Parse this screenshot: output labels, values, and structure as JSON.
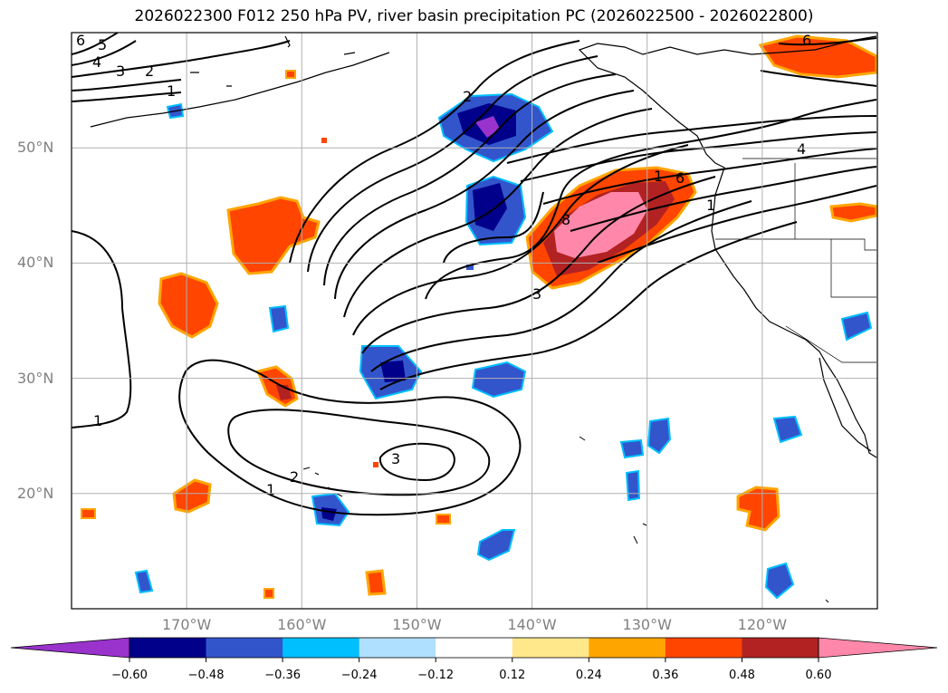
{
  "title": "2026022300 F012 250 hPa PV, river basin precipitation PC (2026022500 - 2026022800)",
  "map": {
    "lon_range": [
      -180,
      -110
    ],
    "lat_range": [
      10,
      60
    ],
    "lat_ticks": [
      {
        "value": 50,
        "label": "50°N"
      },
      {
        "value": 40,
        "label": "40°N"
      },
      {
        "value": 30,
        "label": "30°N"
      },
      {
        "value": 20,
        "label": "20°N"
      }
    ],
    "lon_ticks": [
      {
        "value": -170,
        "label": "170°W"
      },
      {
        "value": -160,
        "label": "160°W"
      },
      {
        "value": -150,
        "label": "150°W"
      },
      {
        "value": -140,
        "label": "140°W"
      },
      {
        "value": -130,
        "label": "130°W"
      },
      {
        "value": -120,
        "label": "120°W"
      }
    ],
    "grid": true,
    "contour_labels": [
      "6",
      "5",
      "4",
      "3",
      "2",
      "1",
      "2",
      "8",
      "3",
      "1",
      "6",
      "1",
      "4",
      "6",
      "1",
      "2",
      "3",
      "1"
    ]
  },
  "colorbar": {
    "ticks": [
      "−0.60",
      "−0.48",
      "−0.36",
      "−0.24",
      "−0.12",
      "0.12",
      "0.24",
      "0.36",
      "0.48",
      "0.60"
    ],
    "colors": [
      "#9933cc",
      "#00008b",
      "#3355cc",
      "#00bfff",
      "#b0e0ff",
      "#ffffff",
      "#ffe88c",
      "#ffa500",
      "#ff4500",
      "#b22222",
      "#ff88aa"
    ]
  }
}
